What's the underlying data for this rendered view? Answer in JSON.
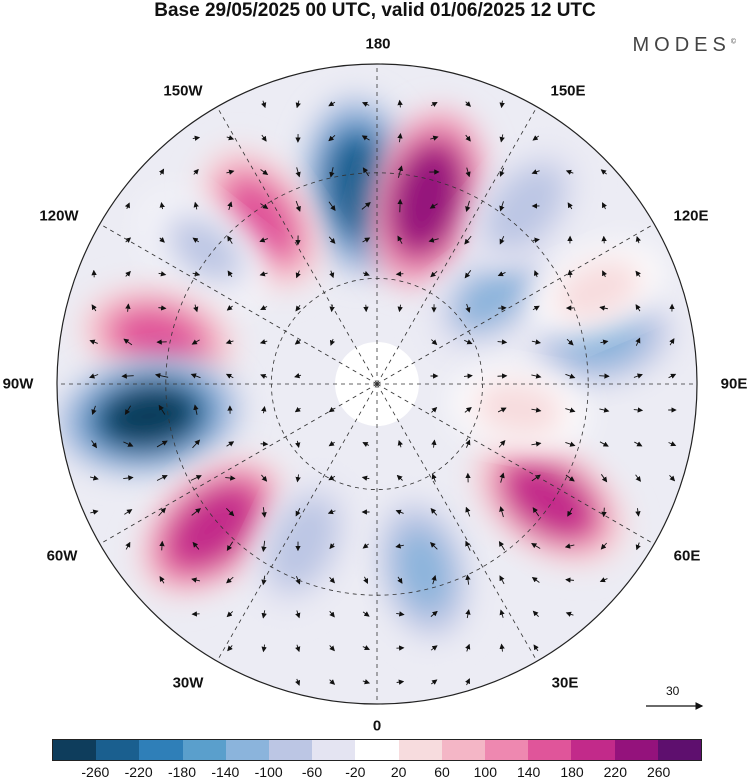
{
  "title": "Base 29/05/2025 00 UTC, valid 01/06/2025 12 UTC",
  "brand": "MODES",
  "brand_mark": "©",
  "longitude_labels": {
    "top": "180",
    "bottom": "0",
    "left": "90W",
    "right": "90E",
    "upper_left_1": "150W",
    "upper_left_2": "120W",
    "upper_right_1": "150E",
    "upper_right_2": "120E",
    "lower_left_1": "60W",
    "lower_left_2": "30W",
    "lower_right_1": "60E",
    "lower_right_2": "30E"
  },
  "wind_scale_value": "30",
  "colorbar": {
    "colors": [
      "#0e3d5c",
      "#1a5f8f",
      "#2f7fb8",
      "#5a9fcc",
      "#8bb4dc",
      "#bcc6e4",
      "#e4e4f2",
      "#ffffff",
      "#f7dcde",
      "#f4b6c6",
      "#ee88b0",
      "#e0559a",
      "#c22a8a",
      "#94127c",
      "#5e0f6e"
    ],
    "tick_labels": [
      "-260",
      "-220",
      "-180",
      "-140",
      "-100",
      "-60",
      "-20",
      "20",
      "60",
      "100",
      "140",
      "180",
      "220",
      "260"
    ]
  },
  "anomaly_centers": [
    {
      "lon_deg": 185,
      "r": 0.62,
      "value": -240
    },
    {
      "lon_deg": 165,
      "r": 0.6,
      "value": 250
    },
    {
      "lon_deg": 215,
      "r": 0.63,
      "value": 150
    },
    {
      "lon_deg": 232,
      "r": 0.68,
      "value": -60
    },
    {
      "lon_deg": 258,
      "r": 0.7,
      "value": 150
    },
    {
      "lon_deg": 278,
      "r": 0.72,
      "value": -260
    },
    {
      "lon_deg": 311,
      "r": 0.68,
      "value": 210
    },
    {
      "lon_deg": 335,
      "r": 0.55,
      "value": -80
    },
    {
      "lon_deg": 14,
      "r": 0.6,
      "value": -120
    },
    {
      "lon_deg": 56,
      "r": 0.65,
      "value": 200
    },
    {
      "lon_deg": 101,
      "r": 0.72,
      "value": -120
    },
    {
      "lon_deg": 127,
      "r": 0.45,
      "value": -100
    },
    {
      "lon_deg": 140,
      "r": 0.72,
      "value": -80
    },
    {
      "lon_deg": 113,
      "r": 0.75,
      "value": 40
    },
    {
      "lon_deg": 80,
      "r": 0.45,
      "value": 40
    }
  ]
}
